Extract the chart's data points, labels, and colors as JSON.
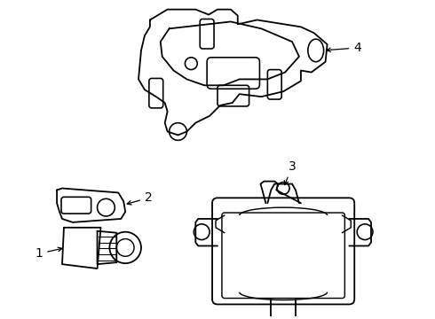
{
  "background_color": "#ffffff",
  "line_color": "#000000",
  "line_width": 1.3,
  "callout_font_size": 9,
  "components": {
    "bracket_top": {
      "label": "4"
    },
    "small_bracket": {
      "label": "2"
    },
    "park_sensor": {
      "label": "1"
    },
    "module": {
      "label": "3"
    }
  }
}
